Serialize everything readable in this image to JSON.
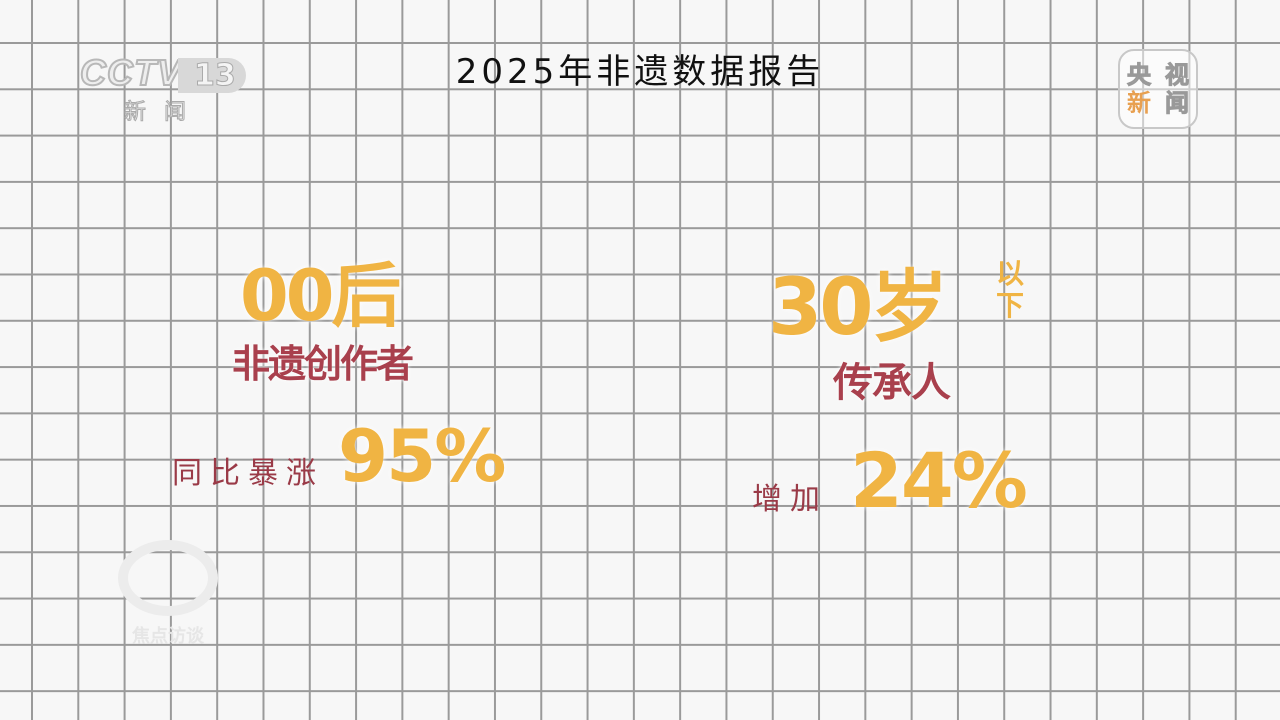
{
  "title": "2025年非遗数据报告",
  "logos": {
    "cctv_word": "CCTV",
    "cctv_channel": "13",
    "cctv_name": "新闻",
    "app_logo": [
      "央",
      "视",
      "新",
      "闻"
    ],
    "watermark": "焦点访谈"
  },
  "left": {
    "headline": "00后",
    "subtitle": "非遗创作者",
    "label": "同比暴涨",
    "value": "95%"
  },
  "right": {
    "headline": "30岁",
    "headline_suffix": [
      "以",
      "下"
    ],
    "subtitle": "传承人",
    "label": "增加",
    "value": "24%"
  },
  "colors": {
    "accent_orange": "#f0b443",
    "accent_red": "#a9404d",
    "background": "#f7f7f7",
    "grid": "#9a9a9a"
  }
}
